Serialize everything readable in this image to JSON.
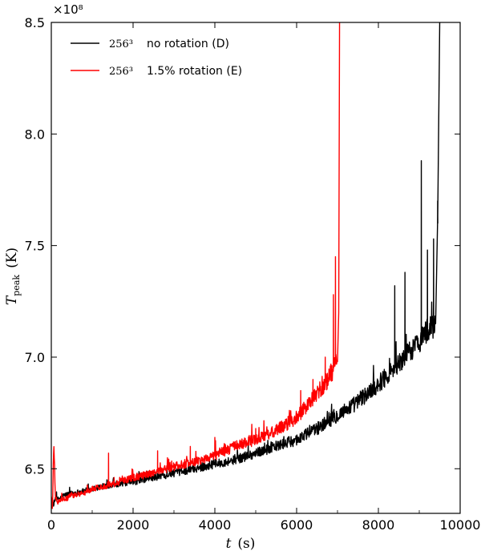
{
  "chart_data": {
    "type": "line",
    "xlabel": "t",
    "xunit": "(s)",
    "ylabel_symbol": "T",
    "ylabel_subscript": "peak",
    "yunit": "(K)",
    "xlim": [
      0,
      10000
    ],
    "ylim": [
      6.3,
      8.5
    ],
    "y_scale_factor": "×10⁸",
    "xticks": [
      0,
      2000,
      4000,
      6000,
      8000,
      10000
    ],
    "yticks": [
      6.5,
      7.0,
      7.5,
      8.0,
      8.5
    ],
    "xtick_labels": [
      "0",
      "2000",
      "4000",
      "6000",
      "8000",
      "10000"
    ],
    "ytick_labels": [
      "6.5",
      "7.0",
      "7.5",
      "8.0",
      "8.5"
    ],
    "grid": false,
    "legend_position": "top-left",
    "series": [
      {
        "name": "256³  no rotation (D)",
        "legend_math": "256³",
        "legend_text": "no rotation (D)",
        "color": "#000000",
        "x": [
          0,
          50,
          100,
          150,
          300,
          500,
          800,
          1000,
          1500,
          2000,
          2500,
          3000,
          3500,
          4000,
          4500,
          5000,
          5500,
          6000,
          6500,
          7000,
          7500,
          8000,
          8500,
          8800,
          9000,
          9100,
          9200,
          9300,
          9400,
          9450,
          9500
        ],
        "y": [
          6.36,
          6.33,
          6.37,
          6.36,
          6.38,
          6.39,
          6.4,
          6.41,
          6.43,
          6.44,
          6.46,
          6.48,
          6.5,
          6.52,
          6.54,
          6.57,
          6.6,
          6.63,
          6.68,
          6.74,
          6.8,
          6.88,
          6.97,
          7.03,
          7.07,
          7.1,
          7.12,
          7.13,
          7.15,
          7.6,
          8.5
        ],
        "spikes": [
          [
            8400,
            7.32
          ],
          [
            8650,
            7.38
          ],
          [
            9050,
            7.88
          ],
          [
            9200,
            7.48
          ],
          [
            9350,
            7.53
          ],
          [
            9450,
            7.7
          ]
        ]
      },
      {
        "name": "256³  1.5% rotation (E)",
        "legend_math": "256³",
        "legend_text": "1.5% rotation (E)",
        "color": "#ff0000",
        "x": [
          0,
          30,
          60,
          100,
          150,
          300,
          500,
          800,
          1000,
          1500,
          2000,
          2500,
          3000,
          3500,
          4000,
          4500,
          5000,
          5500,
          6000,
          6300,
          6600,
          6800,
          6900,
          6950,
          7000,
          7030,
          7050
        ],
        "y": [
          6.38,
          6.31,
          6.63,
          6.37,
          6.35,
          6.36,
          6.38,
          6.39,
          6.41,
          6.43,
          6.46,
          6.48,
          6.51,
          6.53,
          6.56,
          6.6,
          6.63,
          6.67,
          6.73,
          6.79,
          6.86,
          6.91,
          6.95,
          6.97,
          6.98,
          7.2,
          8.5
        ],
        "spikes": [
          [
            1400,
            6.57
          ],
          [
            2600,
            6.58
          ],
          [
            3400,
            6.6
          ],
          [
            4000,
            6.64
          ],
          [
            5000,
            6.68
          ],
          [
            5700,
            6.71
          ],
          [
            6100,
            6.85
          ],
          [
            6400,
            6.9
          ],
          [
            6700,
            7.0
          ],
          [
            6900,
            7.28
          ],
          [
            6950,
            7.45
          ]
        ]
      }
    ]
  }
}
